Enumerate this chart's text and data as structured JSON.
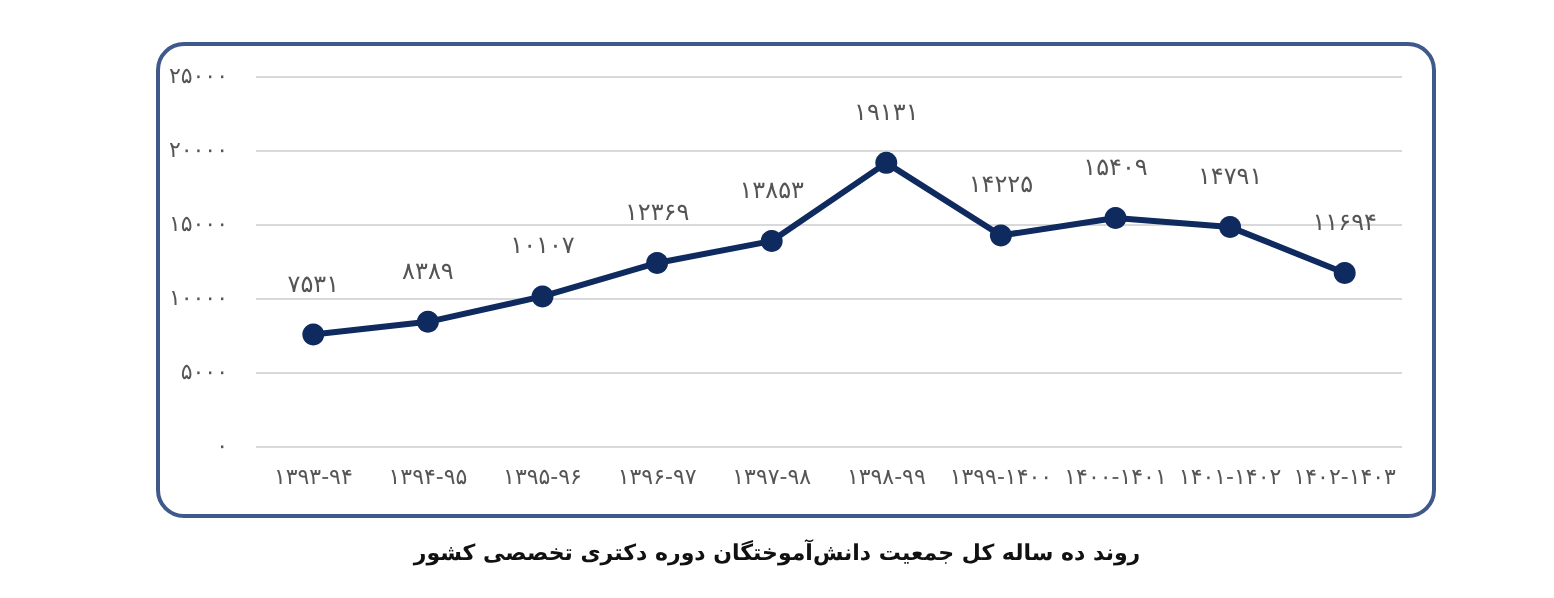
{
  "chart_data": {
    "type": "line",
    "title": "روند ده ساله کل جمعیت دانش‌آموختگان دوره دکتری تخصصی کشور",
    "categories": [
      "۱۳۹۳-۹۴",
      "۱۳۹۴-۹۵",
      "۱۳۹۵-۹۶",
      "۱۳۹۶-۹۷",
      "۱۳۹۷-۹۸",
      "۱۳۹۸-۹۹",
      "۱۳۹۹-۱۴۰۰",
      "۱۴۰۰-۱۴۰۱",
      "۱۴۰۱-۱۴۰۲",
      "۱۴۰۲-۱۴۰۳"
    ],
    "series": [
      {
        "color": "#0f2a5f",
        "values": [
          7531,
          8389,
          10107,
          12369,
          13853,
          19131,
          14225,
          15409,
          14791,
          11694
        ],
        "value_labels": [
          "۷۵۳۱",
          "۸۳۸۹",
          "۱۰۱۰۷",
          "۱۲۳۶۹",
          "۱۳۸۵۳",
          "۱۹۱۳۱",
          "۱۴۲۲۵",
          "۱۵۴۰۹",
          "۱۴۷۹۱",
          "۱۱۶۹۴"
        ]
      }
    ],
    "ylim": [
      0,
      25000
    ],
    "yticks": [
      {
        "value": 0,
        "label": "۰"
      },
      {
        "value": 5000,
        "label": "۵۰۰۰"
      },
      {
        "value": 10000,
        "label": "۱۰۰۰۰"
      },
      {
        "value": 15000,
        "label": "۱۵۰۰۰"
      },
      {
        "value": 20000,
        "label": "۲۰۰۰۰"
      },
      {
        "value": 25000,
        "label": "۲۵۰۰۰"
      }
    ],
    "grid": "y",
    "marker": "circle",
    "line_style": "solid"
  }
}
